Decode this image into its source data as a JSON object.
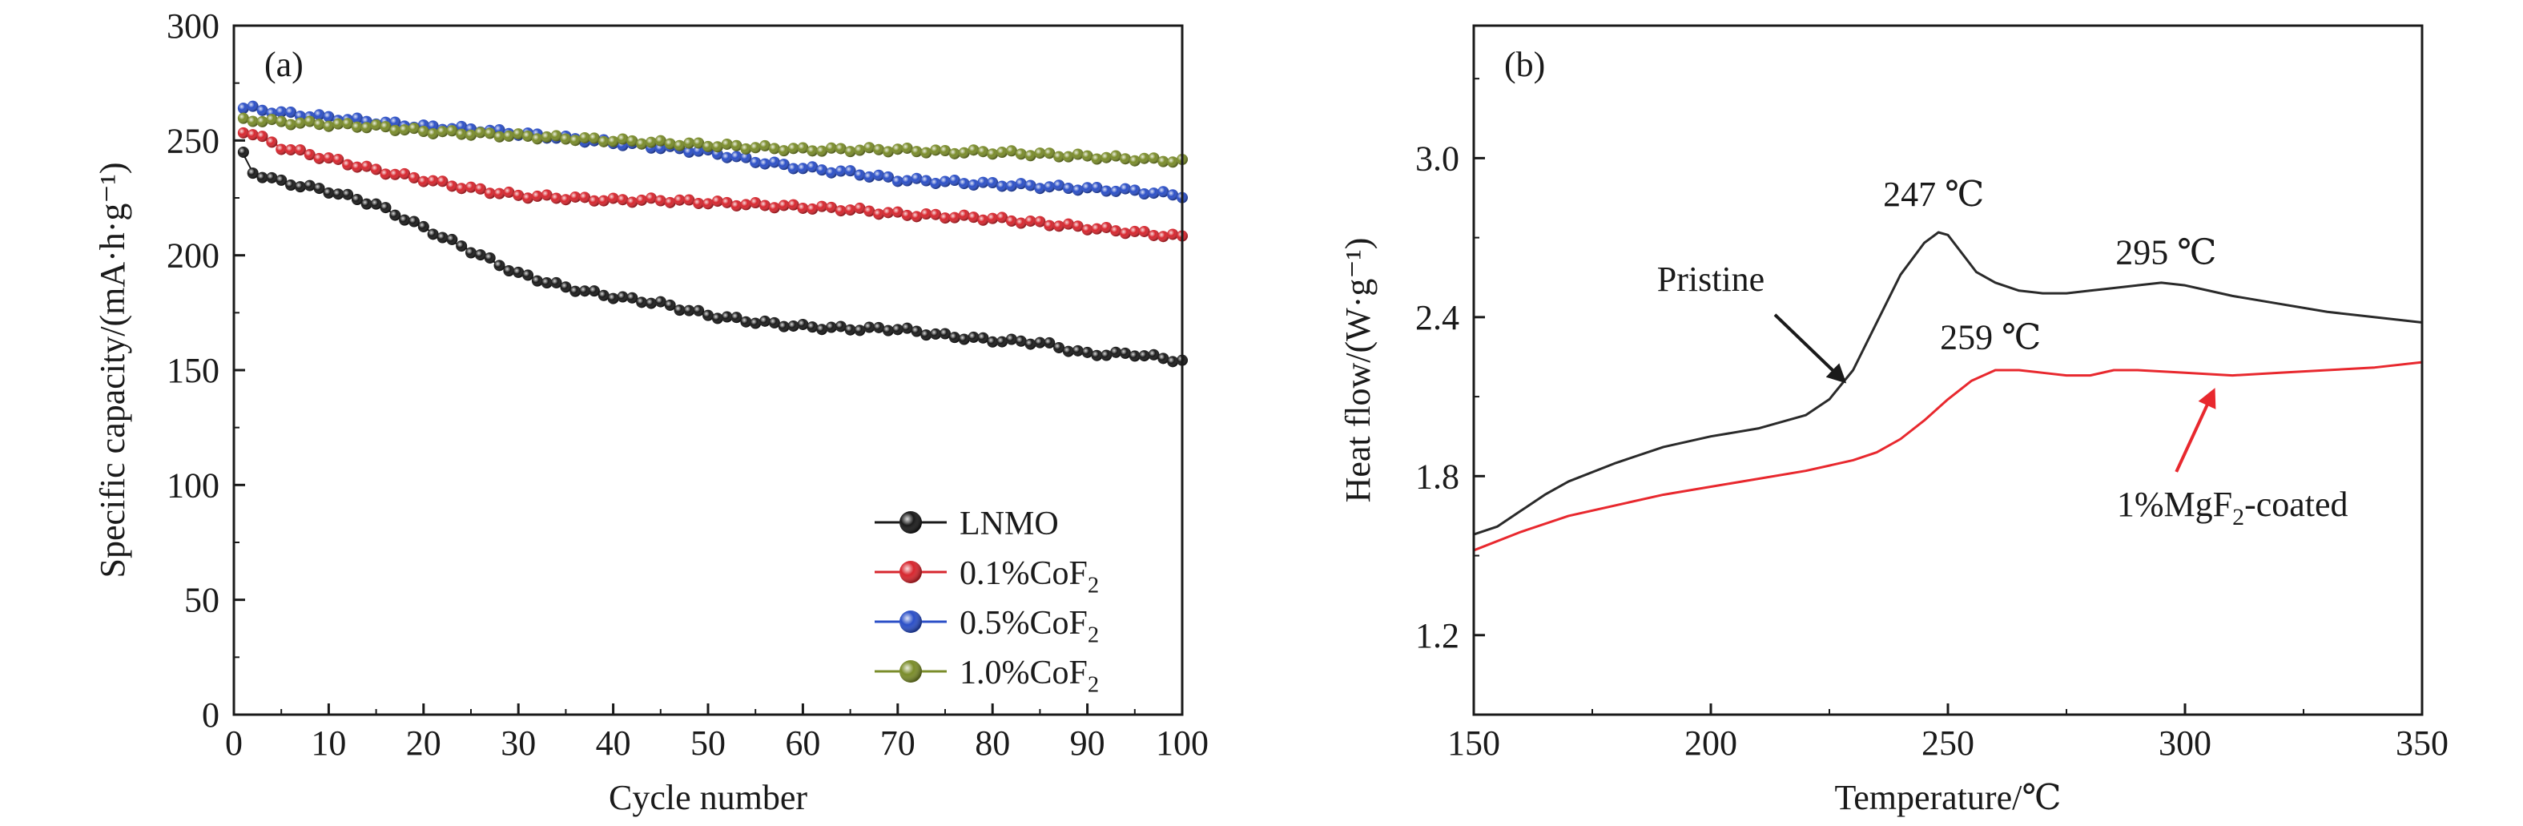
{
  "chart_data": [
    {
      "panel_label": "(a)",
      "type": "line",
      "xlabel": "Cycle number",
      "ylabel": "Specific capacity/(mA·h·g⁻¹)",
      "xlim": [
        0,
        100
      ],
      "ylim": [
        0,
        300
      ],
      "xticks": [
        0,
        10,
        20,
        30,
        40,
        50,
        60,
        70,
        80,
        90,
        100
      ],
      "yticks": [
        0,
        50,
        100,
        150,
        200,
        250,
        300
      ],
      "grid": false,
      "legend_position": "bottom-right",
      "series": [
        {
          "name": "LNMO",
          "name_main": "LNMO",
          "name_sub": "",
          "color": "#1a1a1a",
          "x": [
            1,
            2,
            5,
            10,
            15,
            20,
            25,
            30,
            35,
            40,
            45,
            50,
            55,
            60,
            65,
            70,
            75,
            80,
            85,
            90,
            95,
            100
          ],
          "y": [
            244,
            236,
            232,
            228,
            222,
            212,
            202,
            192,
            186,
            182,
            179,
            174,
            171,
            169,
            168,
            168,
            165,
            163,
            162,
            157,
            157,
            154
          ]
        },
        {
          "name": "0.1%CoF2",
          "name_main": "0.1%CoF",
          "name_sub": "2",
          "color": "#d7262e",
          "x": [
            1,
            2,
            5,
            10,
            15,
            20,
            25,
            30,
            35,
            40,
            45,
            50,
            55,
            60,
            65,
            70,
            75,
            80,
            85,
            90,
            95,
            100
          ],
          "y": [
            254,
            253,
            247,
            242,
            237,
            233,
            229,
            226,
            225,
            224,
            224,
            223,
            222,
            221,
            220,
            218,
            217,
            216,
            214,
            212,
            210,
            208
          ]
        },
        {
          "name": "0.5%CoF2",
          "name_main": "0.5%CoF",
          "name_sub": "2",
          "color": "#2b4fc7",
          "x": [
            1,
            2,
            5,
            10,
            15,
            20,
            25,
            30,
            35,
            40,
            45,
            50,
            55,
            60,
            65,
            70,
            75,
            80,
            85,
            90,
            95,
            100
          ],
          "y": [
            264,
            264,
            262,
            260,
            258,
            256,
            255,
            253,
            251,
            249,
            247,
            245,
            241,
            238,
            236,
            233,
            232,
            231,
            230,
            229,
            228,
            226
          ]
        },
        {
          "name": "1.0%CoF2",
          "name_main": "1.0%CoF",
          "name_sub": "2",
          "color": "#7a8c2a",
          "x": [
            1,
            2,
            5,
            10,
            15,
            20,
            25,
            30,
            35,
            40,
            45,
            50,
            55,
            60,
            65,
            70,
            75,
            80,
            85,
            90,
            95,
            100
          ],
          "y": [
            259,
            259,
            258,
            257,
            256,
            254,
            253,
            252,
            251,
            250,
            249,
            248,
            247,
            246,
            246,
            246,
            245,
            245,
            244,
            243,
            242,
            241
          ]
        }
      ]
    },
    {
      "panel_label": "(b)",
      "type": "line",
      "xlabel": "Temperature/℃",
      "ylabel": "Heat flow/(W·g⁻¹)",
      "xlim": [
        150,
        350
      ],
      "ylim": [
        0.9,
        3.5
      ],
      "xticks": [
        150,
        200,
        250,
        300,
        350
      ],
      "yticks": [
        1.2,
        1.8,
        2.4,
        3.0
      ],
      "ytick_labels": [
        "1.2",
        "1.8",
        "2.4",
        "3.0"
      ],
      "grid": false,
      "series": [
        {
          "name": "Pristine",
          "color": "#2a2a2a",
          "x": [
            150,
            155,
            160,
            165,
            170,
            180,
            190,
            200,
            210,
            220,
            225,
            230,
            235,
            240,
            245,
            248,
            250,
            253,
            256,
            260,
            265,
            270,
            275,
            280,
            285,
            290,
            295,
            300,
            305,
            310,
            320,
            330,
            340,
            350
          ],
          "y": [
            1.58,
            1.61,
            1.67,
            1.73,
            1.78,
            1.85,
            1.91,
            1.95,
            1.98,
            2.03,
            2.09,
            2.2,
            2.38,
            2.56,
            2.68,
            2.72,
            2.71,
            2.64,
            2.57,
            2.53,
            2.5,
            2.49,
            2.49,
            2.5,
            2.51,
            2.52,
            2.53,
            2.52,
            2.5,
            2.48,
            2.45,
            2.42,
            2.4,
            2.38
          ]
        },
        {
          "name": "1%MgF2-coated",
          "color": "#e8282e",
          "x": [
            150,
            160,
            170,
            180,
            190,
            200,
            210,
            220,
            230,
            235,
            240,
            245,
            250,
            255,
            260,
            265,
            270,
            275,
            280,
            285,
            290,
            300,
            310,
            320,
            330,
            340,
            350
          ],
          "y": [
            1.52,
            1.59,
            1.65,
            1.69,
            1.73,
            1.76,
            1.79,
            1.82,
            1.86,
            1.89,
            1.94,
            2.01,
            2.09,
            2.16,
            2.2,
            2.2,
            2.19,
            2.18,
            2.18,
            2.2,
            2.2,
            2.19,
            2.18,
            2.19,
            2.2,
            2.21,
            2.23
          ]
        }
      ],
      "annotations": [
        {
          "text": "247 ℃",
          "x": 247,
          "y": 2.82,
          "color": "#1a1a1a"
        },
        {
          "text": "295 ℃",
          "x": 296,
          "y": 2.6,
          "color": "#1a1a1a"
        },
        {
          "text": "259 ℃",
          "x": 259,
          "y": 2.28,
          "color": "#1a1a1a"
        },
        {
          "text": "Pristine",
          "x": 200,
          "y": 2.5,
          "color": "#1a1a1a",
          "arrow_to": {
            "x": 228,
            "y": 2.16
          }
        },
        {
          "text_main": "1%MgF",
          "text_sub": "2",
          "text_tail": "-coated",
          "x": 310,
          "y": 1.65,
          "color": "#e8282e",
          "arrow_to": {
            "x": 306,
            "y": 2.12
          }
        }
      ]
    }
  ]
}
